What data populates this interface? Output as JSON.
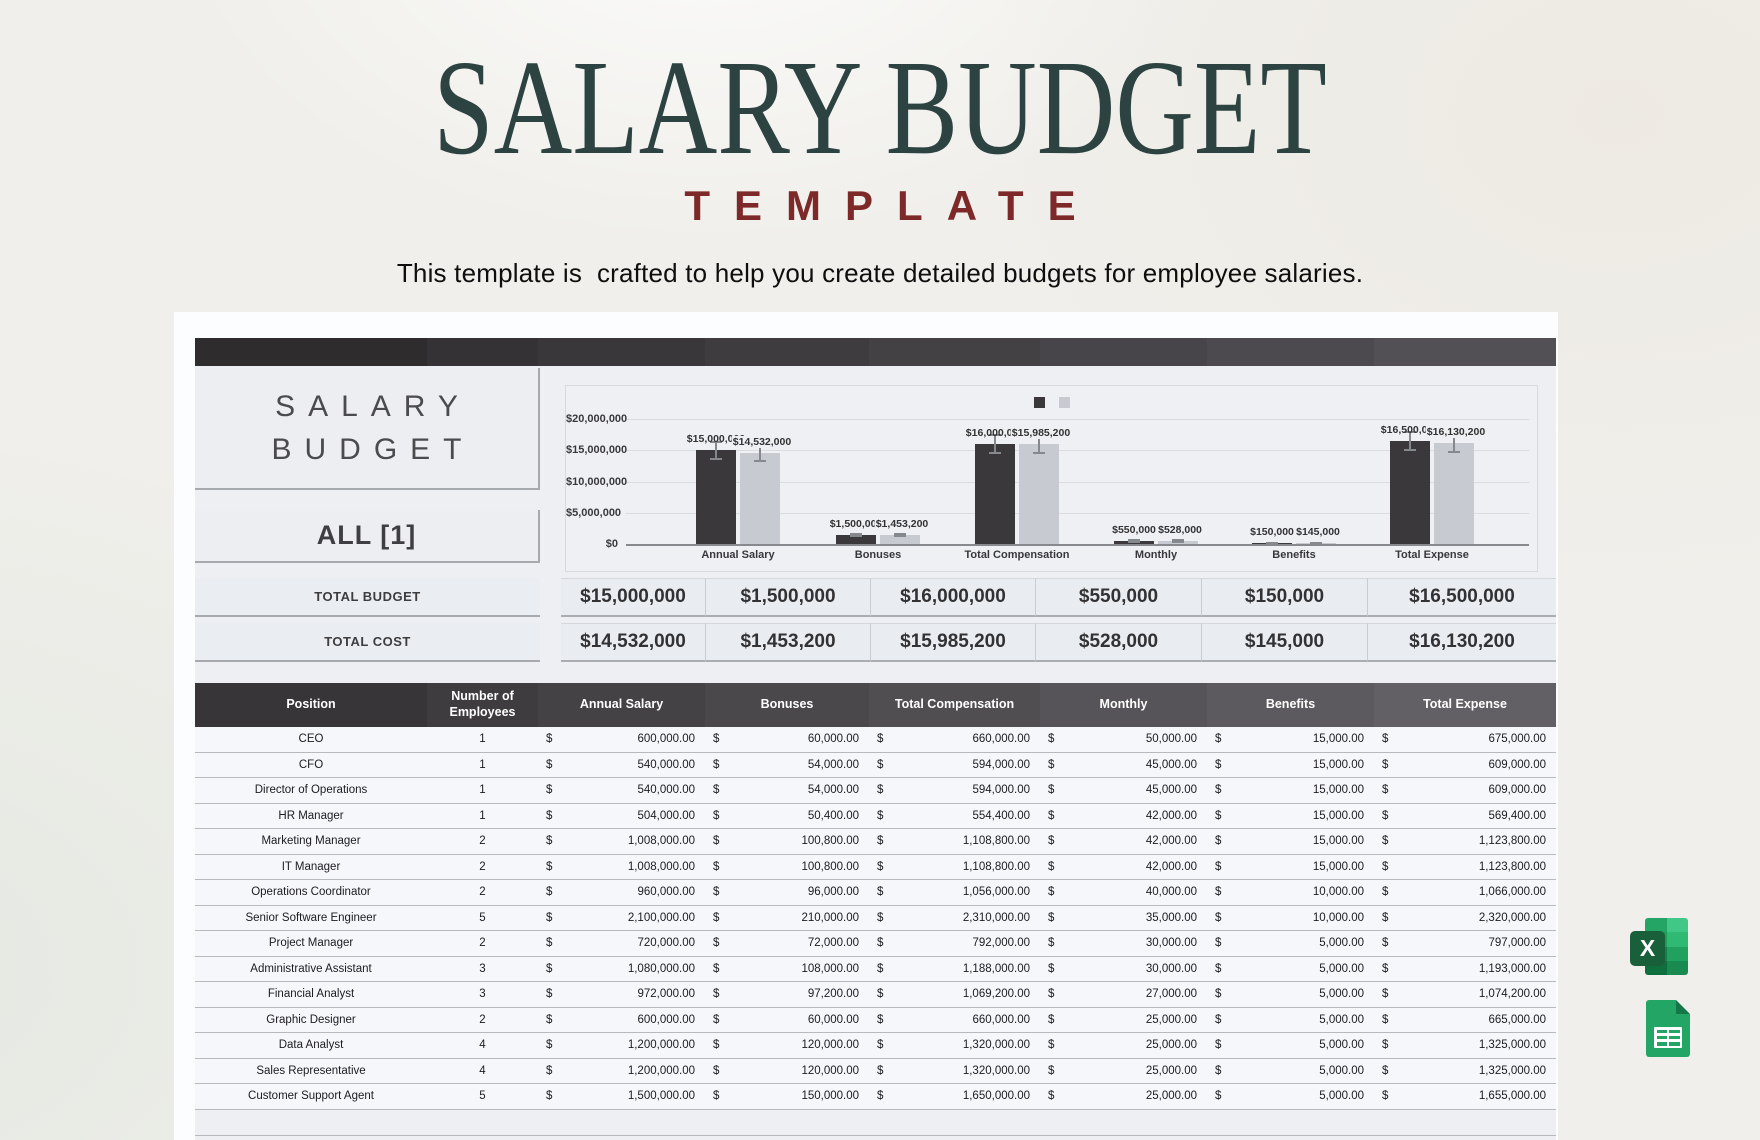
{
  "page": {
    "title": "SALARY BUDGET",
    "subtitle": "TEMPLATE",
    "description": "This template is  crafted to help you create detailed budgets for employee salaries."
  },
  "colors": {
    "title": "#2d4342",
    "template": "#7e2929",
    "bar_budget": "#3a383b",
    "bar_cost": "#c7cbd1",
    "excel_dark": "#19603a",
    "sheets_green": "#23a566"
  },
  "sheet": {
    "panel_title": "SALARY BUDGET",
    "filter_label": "ALL [1]",
    "currency": "$",
    "topbar_shades": [
      "#2f2c2e",
      "#353235",
      "#3a373a",
      "#3f3c3f",
      "#444145",
      "#48454a",
      "#4d4a4f",
      "#525054"
    ],
    "summary": [
      {
        "label": "TOTAL BUDGET",
        "values": [
          "$15,000,000",
          "$1,500,000",
          "$16,000,000",
          "$550,000",
          "$150,000",
          "$16,500,000"
        ]
      },
      {
        "label": "TOTAL COST",
        "values": [
          "$14,532,000",
          "$1,453,200",
          "$15,985,200",
          "$528,000",
          "$145,000",
          "$16,130,200"
        ]
      }
    ],
    "table": {
      "columns": [
        "Position",
        "Number of Employees",
        "Annual Salary",
        "Bonuses",
        "Total Compensation",
        "Monthly",
        "Benefits",
        "Total Expense"
      ],
      "header_shades": [
        "#373538",
        "#3e3c3f",
        "#444245",
        "#4a484b",
        "#504e51",
        "#565458",
        "#5c5a5e",
        "#626064"
      ],
      "rows": [
        [
          "CEO",
          "1",
          "600,000.00",
          "60,000.00",
          "660,000.00",
          "50,000.00",
          "15,000.00",
          "675,000.00"
        ],
        [
          "CFO",
          "1",
          "540,000.00",
          "54,000.00",
          "594,000.00",
          "45,000.00",
          "15,000.00",
          "609,000.00"
        ],
        [
          "Director of Operations",
          "1",
          "540,000.00",
          "54,000.00",
          "594,000.00",
          "45,000.00",
          "15,000.00",
          "609,000.00"
        ],
        [
          "HR Manager",
          "1",
          "504,000.00",
          "50,400.00",
          "554,400.00",
          "42,000.00",
          "15,000.00",
          "569,400.00"
        ],
        [
          "Marketing Manager",
          "2",
          "1,008,000.00",
          "100,800.00",
          "1,108,800.00",
          "42,000.00",
          "15,000.00",
          "1,123,800.00"
        ],
        [
          "IT Manager",
          "2",
          "1,008,000.00",
          "100,800.00",
          "1,108,800.00",
          "42,000.00",
          "15,000.00",
          "1,123,800.00"
        ],
        [
          "Operations Coordinator",
          "2",
          "960,000.00",
          "96,000.00",
          "1,056,000.00",
          "40,000.00",
          "10,000.00",
          "1,066,000.00"
        ],
        [
          "Senior Software Engineer",
          "5",
          "2,100,000.00",
          "210,000.00",
          "2,310,000.00",
          "35,000.00",
          "10,000.00",
          "2,320,000.00"
        ],
        [
          "Project Manager",
          "2",
          "720,000.00",
          "72,000.00",
          "792,000.00",
          "30,000.00",
          "5,000.00",
          "797,000.00"
        ],
        [
          "Administrative Assistant",
          "3",
          "1,080,000.00",
          "108,000.00",
          "1,188,000.00",
          "30,000.00",
          "5,000.00",
          "1,193,000.00"
        ],
        [
          "Financial Analyst",
          "3",
          "972,000.00",
          "97,200.00",
          "1,069,200.00",
          "27,000.00",
          "5,000.00",
          "1,074,200.00"
        ],
        [
          "Graphic Designer",
          "2",
          "600,000.00",
          "60,000.00",
          "660,000.00",
          "25,000.00",
          "5,000.00",
          "665,000.00"
        ],
        [
          "Data Analyst",
          "4",
          "1,200,000.00",
          "120,000.00",
          "1,320,000.00",
          "25,000.00",
          "5,000.00",
          "1,325,000.00"
        ],
        [
          "Sales Representative",
          "4",
          "1,200,000.00",
          "120,000.00",
          "1,320,000.00",
          "25,000.00",
          "5,000.00",
          "1,325,000.00"
        ],
        [
          "Customer Support Agent",
          "5",
          "1,500,000.00",
          "150,000.00",
          "1,650,000.00",
          "25,000.00",
          "5,000.00",
          "1,655,000.00"
        ]
      ]
    }
  },
  "chart_data": {
    "type": "bar",
    "title": "",
    "categories": [
      "Annual Salary",
      "Bonuses",
      "Total Compensation",
      "Monthly",
      "Benefits",
      "Total Expense"
    ],
    "series": [
      {
        "name": "Total Budget",
        "color": "#3a383b",
        "values": [
          15000000,
          1500000,
          16000000,
          550000,
          150000,
          16500000
        ],
        "labels": [
          "$15,000,000",
          "$1,500,000",
          "$16,000,000",
          "$550,000",
          "$150,000",
          "$16,500,000"
        ]
      },
      {
        "name": "Total Cost",
        "color": "#c7cbd1",
        "values": [
          14532000,
          1453200,
          15985200,
          528000,
          145000,
          16130200
        ],
        "labels": [
          "$14,532,000",
          "$1,453,200",
          "$15,985,200",
          "$528,000",
          "$145,000",
          "$16,130,200"
        ]
      }
    ],
    "ylim": [
      0,
      20000000
    ],
    "yticks": [
      {
        "value": 0,
        "label": "$0"
      },
      {
        "value": 5000000,
        "label": "$5,000,000"
      },
      {
        "value": 10000000,
        "label": "$10,000,000"
      },
      {
        "value": 15000000,
        "label": "$15,000,000"
      },
      {
        "value": 20000000,
        "label": "$20,000,000"
      }
    ],
    "error_bars": true,
    "grid": true,
    "legend_position": "top"
  },
  "icons": {
    "excel": "Excel",
    "google_sheets": "Google Sheets",
    "excel_shades": [
      "#25a565",
      "#41c886",
      "#1d9c5a",
      "#30b973",
      "#158349",
      "#22a15e",
      "#0f6e3e",
      "#1a8b50"
    ],
    "excel_letter": "X"
  }
}
